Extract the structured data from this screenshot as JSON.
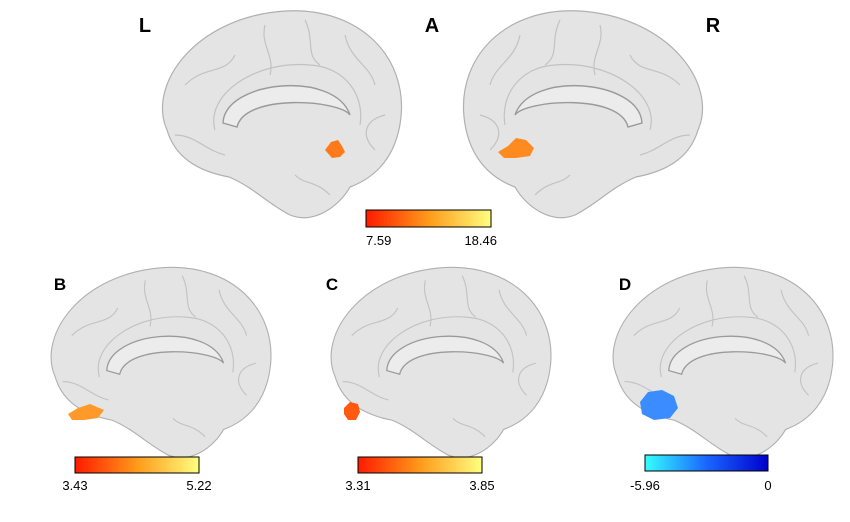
{
  "side_labels": {
    "left": "L",
    "right": "R"
  },
  "panels": [
    {
      "label": "A",
      "colorbar": {
        "min": 7.59,
        "max": 18.46,
        "colors": [
          "#ff1a00",
          "#ff9a1a",
          "#ffff80"
        ]
      }
    },
    {
      "label": "B",
      "colorbar": {
        "min": 3.43,
        "max": 5.22,
        "colors": [
          "#ff1a00",
          "#ff9a1a",
          "#ffff80"
        ]
      }
    },
    {
      "label": "C",
      "colorbar": {
        "min": 3.31,
        "max": 3.85,
        "colors": [
          "#ff1a00",
          "#ff9a1a",
          "#ffff80"
        ]
      }
    },
    {
      "label": "D",
      "colorbar": {
        "min": -5.96,
        "max": 0,
        "colors": [
          "#33ffff",
          "#1a66ff",
          "#0000cc"
        ]
      }
    }
  ]
}
